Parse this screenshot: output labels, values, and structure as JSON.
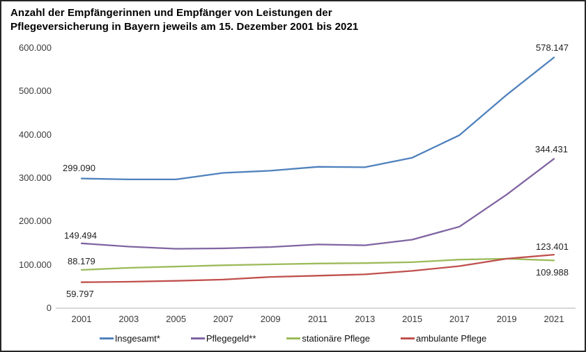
{
  "chart_data": {
    "type": "line",
    "title": "Anzahl der Empfängerinnen und Empfänger von Leistungen der Pflegeversicherung in Bayern jeweils am 15. Dezember 2001 bis 2021",
    "title_lines": [
      "Anzahl der Empfängerinnen und Empfänger von Leistungen der",
      "Pflegeversicherung in Bayern jeweils am 15. Dezember 2001 bis 2021"
    ],
    "categories": [
      "2001",
      "2003",
      "2005",
      "2007",
      "2009",
      "2011",
      "2013",
      "2015",
      "2017",
      "2019",
      "2021"
    ],
    "y_ticks": {
      "labels": [
        "600.000",
        "500.000",
        "400.000",
        "300.000",
        "200.000",
        "100.000",
        "0"
      ],
      "values": [
        600000,
        500000,
        400000,
        300000,
        200000,
        100000,
        0
      ]
    },
    "ylim": [
      0,
      600000
    ],
    "xlabel": "",
    "ylabel": "",
    "grid": false,
    "legend_position": "bottom",
    "axis_color": "#bfbfbf",
    "series": [
      {
        "name": "Insgesamt*",
        "color": "#4F81BD",
        "values": [
          299090,
          297000,
          297000,
          312000,
          317000,
          326000,
          325000,
          347000,
          399000,
          492000,
          578147
        ],
        "start_label": "299.090",
        "end_label": "578.147"
      },
      {
        "name": "Pflegegeld**",
        "color": "#8064A2",
        "values": [
          149494,
          142000,
          137000,
          138000,
          141000,
          147000,
          145000,
          158000,
          188000,
          262000,
          344431
        ],
        "start_label": "149.494",
        "end_label": "344.431"
      },
      {
        "name": "stationäre Pflege",
        "color": "#9BBB59",
        "values": [
          88179,
          93000,
          96000,
          99000,
          101000,
          103000,
          104000,
          106000,
          112000,
          114000,
          109988
        ],
        "start_label": "88.179",
        "end_label": "109.988"
      },
      {
        "name": "ambulante Pflege",
        "color": "#C0504D",
        "values": [
          59797,
          61000,
          63000,
          66000,
          72000,
          75000,
          78000,
          86000,
          97000,
          114000,
          123401
        ],
        "start_label": "59.797",
        "end_label": "123.401"
      }
    ]
  }
}
